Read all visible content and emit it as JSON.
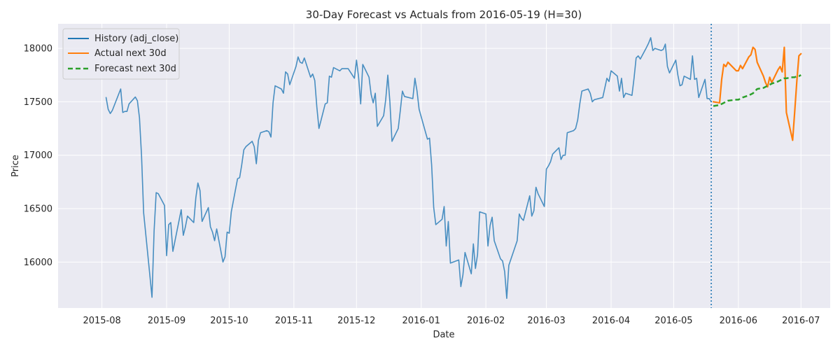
{
  "chart_data": {
    "type": "line",
    "title": "30-Day Forecast vs Actuals from 2016-05-19 (H=30)",
    "xlabel": "Date",
    "ylabel": "Price",
    "xlim": [
      "2015-07-11",
      "2016-07-15"
    ],
    "ylim": [
      15570,
      18230
    ],
    "x_ticks": [
      "2015-08",
      "2015-09",
      "2015-10",
      "2015-11",
      "2015-12",
      "2016-01",
      "2016-02",
      "2016-03",
      "2016-04",
      "2016-05",
      "2016-06",
      "2016-07"
    ],
    "y_ticks": [
      16000,
      16500,
      17000,
      17500,
      18000
    ],
    "grid": true,
    "legend_position": "top-left",
    "forecast_origin": "2016-05-19",
    "colors": {
      "history": "#1f77b4",
      "actual": "#ff7f0e",
      "forecast": "#2ca02c",
      "origin_line": "#1f77b4",
      "plot_bg": "#eaeaf2",
      "grid": "#ffffff"
    },
    "series": [
      {
        "name": "History (adj_close)",
        "style": "solid",
        "points": [
          [
            "2015-08-03",
            17540
          ],
          [
            "2015-08-04",
            17430
          ],
          [
            "2015-08-05",
            17390
          ],
          [
            "2015-08-06",
            17420
          ],
          [
            "2015-08-07",
            17470
          ],
          [
            "2015-08-10",
            17620
          ],
          [
            "2015-08-11",
            17400
          ],
          [
            "2015-08-12",
            17410
          ],
          [
            "2015-08-13",
            17410
          ],
          [
            "2015-08-14",
            17480
          ],
          [
            "2015-08-17",
            17545
          ],
          [
            "2015-08-18",
            17510
          ],
          [
            "2015-08-19",
            17350
          ],
          [
            "2015-08-20",
            16990
          ],
          [
            "2015-08-21",
            16460
          ],
          [
            "2015-08-24",
            15870
          ],
          [
            "2015-08-25",
            15670
          ],
          [
            "2015-08-26",
            16290
          ],
          [
            "2015-08-27",
            16650
          ],
          [
            "2015-08-28",
            16640
          ],
          [
            "2015-08-31",
            16530
          ],
          [
            "2015-09-01",
            16060
          ],
          [
            "2015-09-02",
            16350
          ],
          [
            "2015-09-03",
            16370
          ],
          [
            "2015-09-04",
            16100
          ],
          [
            "2015-09-08",
            16490
          ],
          [
            "2015-09-09",
            16250
          ],
          [
            "2015-09-10",
            16330
          ],
          [
            "2015-09-11",
            16430
          ],
          [
            "2015-09-14",
            16370
          ],
          [
            "2015-09-15",
            16600
          ],
          [
            "2015-09-16",
            16740
          ],
          [
            "2015-09-17",
            16670
          ],
          [
            "2015-09-18",
            16380
          ],
          [
            "2015-09-21",
            16510
          ],
          [
            "2015-09-22",
            16330
          ],
          [
            "2015-09-23",
            16280
          ],
          [
            "2015-09-24",
            16200
          ],
          [
            "2015-09-25",
            16310
          ],
          [
            "2015-09-28",
            16000
          ],
          [
            "2015-09-29",
            16050
          ],
          [
            "2015-09-30",
            16280
          ],
          [
            "2015-10-01",
            16270
          ],
          [
            "2015-10-02",
            16470
          ],
          [
            "2015-10-05",
            16780
          ],
          [
            "2015-10-06",
            16790
          ],
          [
            "2015-10-07",
            16910
          ],
          [
            "2015-10-08",
            17050
          ],
          [
            "2015-10-09",
            17080
          ],
          [
            "2015-10-12",
            17130
          ],
          [
            "2015-10-13",
            17080
          ],
          [
            "2015-10-14",
            16920
          ],
          [
            "2015-10-15",
            17140
          ],
          [
            "2015-10-16",
            17210
          ],
          [
            "2015-10-19",
            17230
          ],
          [
            "2015-10-20",
            17220
          ],
          [
            "2015-10-21",
            17170
          ],
          [
            "2015-10-22",
            17490
          ],
          [
            "2015-10-23",
            17650
          ],
          [
            "2015-10-26",
            17620
          ],
          [
            "2015-10-27",
            17580
          ],
          [
            "2015-10-28",
            17780
          ],
          [
            "2015-10-29",
            17760
          ],
          [
            "2015-10-30",
            17660
          ],
          [
            "2015-11-02",
            17830
          ],
          [
            "2015-11-03",
            17920
          ],
          [
            "2015-11-04",
            17870
          ],
          [
            "2015-11-05",
            17860
          ],
          [
            "2015-11-06",
            17910
          ],
          [
            "2015-11-09",
            17730
          ],
          [
            "2015-11-10",
            17760
          ],
          [
            "2015-11-11",
            17700
          ],
          [
            "2015-11-12",
            17450
          ],
          [
            "2015-11-13",
            17250
          ],
          [
            "2015-11-16",
            17480
          ],
          [
            "2015-11-17",
            17490
          ],
          [
            "2015-11-18",
            17740
          ],
          [
            "2015-11-19",
            17730
          ],
          [
            "2015-11-20",
            17820
          ],
          [
            "2015-11-23",
            17790
          ],
          [
            "2015-11-24",
            17810
          ],
          [
            "2015-11-25",
            17810
          ],
          [
            "2015-11-27",
            17810
          ],
          [
            "2015-11-30",
            17720
          ],
          [
            "2015-12-01",
            17890
          ],
          [
            "2015-12-02",
            17730
          ],
          [
            "2015-12-03",
            17480
          ],
          [
            "2015-12-04",
            17850
          ],
          [
            "2015-12-07",
            17730
          ],
          [
            "2015-12-08",
            17570
          ],
          [
            "2015-12-09",
            17490
          ],
          [
            "2015-12-10",
            17580
          ],
          [
            "2015-12-11",
            17270
          ],
          [
            "2015-12-14",
            17370
          ],
          [
            "2015-12-15",
            17520
          ],
          [
            "2015-12-16",
            17750
          ],
          [
            "2015-12-17",
            17500
          ],
          [
            "2015-12-18",
            17130
          ],
          [
            "2015-12-21",
            17250
          ],
          [
            "2015-12-22",
            17420
          ],
          [
            "2015-12-23",
            17600
          ],
          [
            "2015-12-24",
            17550
          ],
          [
            "2015-12-28",
            17530
          ],
          [
            "2015-12-29",
            17720
          ],
          [
            "2015-12-30",
            17600
          ],
          [
            "2015-12-31",
            17430
          ],
          [
            "2016-01-04",
            17150
          ],
          [
            "2016-01-05",
            17160
          ],
          [
            "2016-01-06",
            16910
          ],
          [
            "2016-01-07",
            16510
          ],
          [
            "2016-01-08",
            16350
          ],
          [
            "2016-01-11",
            16400
          ],
          [
            "2016-01-12",
            16520
          ],
          [
            "2016-01-13",
            16150
          ],
          [
            "2016-01-14",
            16380
          ],
          [
            "2016-01-15",
            15990
          ],
          [
            "2016-01-19",
            16020
          ],
          [
            "2016-01-20",
            15770
          ],
          [
            "2016-01-21",
            15880
          ],
          [
            "2016-01-22",
            16090
          ],
          [
            "2016-01-25",
            15890
          ],
          [
            "2016-01-26",
            16170
          ],
          [
            "2016-01-27",
            15940
          ],
          [
            "2016-01-28",
            16070
          ],
          [
            "2016-01-29",
            16470
          ],
          [
            "2016-02-01",
            16450
          ],
          [
            "2016-02-02",
            16150
          ],
          [
            "2016-02-03",
            16340
          ],
          [
            "2016-02-04",
            16420
          ],
          [
            "2016-02-05",
            16200
          ],
          [
            "2016-02-08",
            16030
          ],
          [
            "2016-02-09",
            16010
          ],
          [
            "2016-02-10",
            15910
          ],
          [
            "2016-02-11",
            15660
          ],
          [
            "2016-02-12",
            15970
          ],
          [
            "2016-02-16",
            16200
          ],
          [
            "2016-02-17",
            16450
          ],
          [
            "2016-02-18",
            16410
          ],
          [
            "2016-02-19",
            16390
          ],
          [
            "2016-02-22",
            16620
          ],
          [
            "2016-02-23",
            16430
          ],
          [
            "2016-02-24",
            16480
          ],
          [
            "2016-02-25",
            16700
          ],
          [
            "2016-02-26",
            16640
          ],
          [
            "2016-02-29",
            16520
          ],
          [
            "2016-03-01",
            16870
          ],
          [
            "2016-03-02",
            16900
          ],
          [
            "2016-03-03",
            16940
          ],
          [
            "2016-03-04",
            17010
          ],
          [
            "2016-03-07",
            17070
          ],
          [
            "2016-03-08",
            16960
          ],
          [
            "2016-03-09",
            17000
          ],
          [
            "2016-03-10",
            17000
          ],
          [
            "2016-03-11",
            17210
          ],
          [
            "2016-03-14",
            17230
          ],
          [
            "2016-03-15",
            17250
          ],
          [
            "2016-03-16",
            17330
          ],
          [
            "2016-03-17",
            17480
          ],
          [
            "2016-03-18",
            17600
          ],
          [
            "2016-03-21",
            17620
          ],
          [
            "2016-03-22",
            17580
          ],
          [
            "2016-03-23",
            17500
          ],
          [
            "2016-03-24",
            17520
          ],
          [
            "2016-03-28",
            17540
          ],
          [
            "2016-03-29",
            17630
          ],
          [
            "2016-03-30",
            17720
          ],
          [
            "2016-03-31",
            17690
          ],
          [
            "2016-04-01",
            17790
          ],
          [
            "2016-04-04",
            17740
          ],
          [
            "2016-04-05",
            17600
          ],
          [
            "2016-04-06",
            17720
          ],
          [
            "2016-04-07",
            17540
          ],
          [
            "2016-04-08",
            17580
          ],
          [
            "2016-04-11",
            17560
          ],
          [
            "2016-04-12",
            17720
          ],
          [
            "2016-04-13",
            17910
          ],
          [
            "2016-04-14",
            17930
          ],
          [
            "2016-04-15",
            17900
          ],
          [
            "2016-04-18",
            18010
          ],
          [
            "2016-04-19",
            18050
          ],
          [
            "2016-04-20",
            18100
          ],
          [
            "2016-04-21",
            17980
          ],
          [
            "2016-04-22",
            18000
          ],
          [
            "2016-04-25",
            17980
          ],
          [
            "2016-04-26",
            17990
          ],
          [
            "2016-04-27",
            18040
          ],
          [
            "2016-04-28",
            17830
          ],
          [
            "2016-04-29",
            17770
          ],
          [
            "2016-05-02",
            17890
          ],
          [
            "2016-05-03",
            17750
          ],
          [
            "2016-05-04",
            17650
          ],
          [
            "2016-05-05",
            17660
          ],
          [
            "2016-05-06",
            17740
          ],
          [
            "2016-05-09",
            17710
          ],
          [
            "2016-05-10",
            17930
          ],
          [
            "2016-05-11",
            17710
          ],
          [
            "2016-05-12",
            17720
          ],
          [
            "2016-05-13",
            17540
          ],
          [
            "2016-05-16",
            17710
          ],
          [
            "2016-05-17",
            17530
          ],
          [
            "2016-05-18",
            17530
          ],
          [
            "2016-05-19",
            17500
          ]
        ]
      },
      {
        "name": "Actual next 30d",
        "style": "solid",
        "points": [
          [
            "2016-05-20",
            17500
          ],
          [
            "2016-05-23",
            17490
          ],
          [
            "2016-05-24",
            17710
          ],
          [
            "2016-05-25",
            17850
          ],
          [
            "2016-05-26",
            17830
          ],
          [
            "2016-05-27",
            17870
          ],
          [
            "2016-05-31",
            17790
          ],
          [
            "2016-06-01",
            17790
          ],
          [
            "2016-06-02",
            17840
          ],
          [
            "2016-06-03",
            17810
          ],
          [
            "2016-06-06",
            17920
          ],
          [
            "2016-06-07",
            17940
          ],
          [
            "2016-06-08",
            18010
          ],
          [
            "2016-06-09",
            17990
          ],
          [
            "2016-06-10",
            17870
          ],
          [
            "2016-06-13",
            17740
          ],
          [
            "2016-06-14",
            17680
          ],
          [
            "2016-06-15",
            17640
          ],
          [
            "2016-06-16",
            17730
          ],
          [
            "2016-06-17",
            17680
          ],
          [
            "2016-06-20",
            17800
          ],
          [
            "2016-06-21",
            17830
          ],
          [
            "2016-06-22",
            17780
          ],
          [
            "2016-06-23",
            18010
          ],
          [
            "2016-06-24",
            17400
          ],
          [
            "2016-06-27",
            17140
          ],
          [
            "2016-06-28",
            17410
          ],
          [
            "2016-06-29",
            17690
          ],
          [
            "2016-06-30",
            17930
          ],
          [
            "2016-07-01",
            17950
          ]
        ]
      },
      {
        "name": "Forecast next 30d",
        "style": "dashed",
        "points": [
          [
            "2016-05-20",
            17460
          ],
          [
            "2016-05-23",
            17470
          ],
          [
            "2016-05-24",
            17480
          ],
          [
            "2016-05-25",
            17490
          ],
          [
            "2016-05-26",
            17500
          ],
          [
            "2016-05-27",
            17510
          ],
          [
            "2016-05-31",
            17520
          ],
          [
            "2016-06-01",
            17520
          ],
          [
            "2016-06-02",
            17530
          ],
          [
            "2016-06-03",
            17540
          ],
          [
            "2016-06-06",
            17560
          ],
          [
            "2016-06-07",
            17570
          ],
          [
            "2016-06-08",
            17580
          ],
          [
            "2016-06-09",
            17600
          ],
          [
            "2016-06-10",
            17620
          ],
          [
            "2016-06-13",
            17630
          ],
          [
            "2016-06-14",
            17640
          ],
          [
            "2016-06-15",
            17650
          ],
          [
            "2016-06-16",
            17660
          ],
          [
            "2016-06-17",
            17670
          ],
          [
            "2016-06-20",
            17690
          ],
          [
            "2016-06-21",
            17700
          ],
          [
            "2016-06-22",
            17710
          ],
          [
            "2016-06-23",
            17720
          ],
          [
            "2016-06-24",
            17720
          ],
          [
            "2016-06-27",
            17730
          ],
          [
            "2016-06-28",
            17730
          ],
          [
            "2016-06-29",
            17740
          ],
          [
            "2016-06-30",
            17740
          ],
          [
            "2016-07-01",
            17750
          ]
        ]
      }
    ]
  }
}
